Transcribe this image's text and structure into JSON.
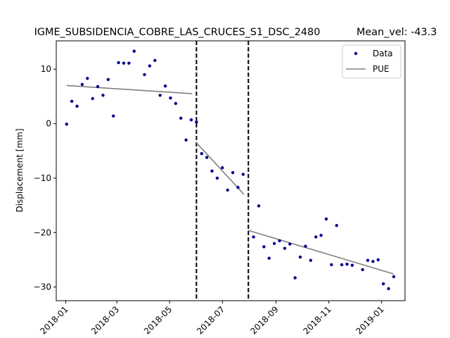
{
  "chart_data": {
    "type": "scatter",
    "title": "IGME_SUBSIDENCIA_COBRE_LAS_CRUCES_S1_DSC_2480",
    "title_right": "Mean_vel: -43.3",
    "xlabel": "",
    "ylabel": "Displacement [mm]",
    "xlim": [
      "2017-12-21",
      "2019-01-28"
    ],
    "ylim": [
      -32.5,
      15.2
    ],
    "yticks": [
      10,
      0,
      -10,
      -20,
      -30
    ],
    "ytick_labels": [
      "10",
      "0",
      "−10",
      "−20",
      "−30"
    ],
    "xticks": [
      "2018-01-01",
      "2018-03-01",
      "2018-05-01",
      "2018-07-01",
      "2018-09-01",
      "2018-11-01",
      "2019-01-01"
    ],
    "xtick_labels": [
      "2018-01",
      "2018-03",
      "2018-05",
      "2018-07",
      "2018-09",
      "2018-11",
      "2019-01"
    ],
    "grid": false,
    "legend_position": "top-right",
    "legend": [
      {
        "label": "Data",
        "kind": "marker",
        "color": "#00008b"
      },
      {
        "label": "PUE",
        "kind": "line",
        "color": "#808080"
      }
    ],
    "breakpoints": [
      "2018-06-01",
      "2018-07-31"
    ],
    "series": [
      {
        "name": "Data",
        "color": "#00008b",
        "x": [
          "2018-01-02",
          "2018-01-08",
          "2018-01-14",
          "2018-01-20",
          "2018-01-26",
          "2018-02-01",
          "2018-02-07",
          "2018-02-13",
          "2018-02-19",
          "2018-02-25",
          "2018-03-03",
          "2018-03-09",
          "2018-03-15",
          "2018-03-21",
          "2018-03-27",
          "2018-04-02",
          "2018-04-08",
          "2018-04-14",
          "2018-04-20",
          "2018-04-26",
          "2018-05-02",
          "2018-05-08",
          "2018-05-14",
          "2018-05-20",
          "2018-05-26",
          "2018-06-01",
          "2018-06-07",
          "2018-06-13",
          "2018-06-19",
          "2018-06-25",
          "2018-07-01",
          "2018-07-07",
          "2018-07-13",
          "2018-07-19",
          "2018-07-25",
          "2018-07-31",
          "2018-08-06",
          "2018-08-12",
          "2018-08-18",
          "2018-08-24",
          "2018-08-30",
          "2018-09-05",
          "2018-09-11",
          "2018-09-17",
          "2018-09-23",
          "2018-09-29",
          "2018-10-05",
          "2018-10-11",
          "2018-10-17",
          "2018-10-23",
          "2018-10-29",
          "2018-11-04",
          "2018-11-10",
          "2018-11-16",
          "2018-11-22",
          "2018-11-28",
          "2018-12-04",
          "2018-12-10",
          "2018-12-16",
          "2018-12-22",
          "2018-12-28",
          "2019-01-03",
          "2019-01-09",
          "2019-01-15"
        ],
        "y": [
          -0.1,
          4.1,
          3.2,
          7.2,
          8.3,
          4.6,
          6.8,
          5.2,
          8.1,
          1.4,
          11.2,
          11.1,
          11.1,
          13.3,
          null,
          9.0,
          10.6,
          11.6,
          5.2,
          6.9,
          4.7,
          3.7,
          1.0,
          -3.0,
          0.7,
          0.3,
          -5.5,
          -6.2,
          -8.7,
          -10.0,
          -8.1,
          -12.2,
          -9.0,
          -11.7,
          -9.3,
          null,
          -20.8,
          -15.1,
          -22.6,
          -24.7,
          -22.0,
          -21.5,
          -22.9,
          -22.1,
          -28.3,
          -24.5,
          -22.5,
          -25.1,
          -20.8,
          -20.5,
          -17.5,
          -25.9,
          -18.7,
          -25.9,
          -25.8,
          -26.0,
          null,
          -26.8,
          -25.1,
          -25.3,
          -25.0,
          -29.4,
          -30.3,
          -28.1
        ]
      },
      {
        "name": "PUE",
        "color": "#808080",
        "segments": [
          {
            "x": [
              "2018-01-02",
              "2018-05-27"
            ],
            "y": [
              7.0,
              5.5
            ]
          },
          {
            "x": [
              "2018-06-01",
              "2018-07-26"
            ],
            "y": [
              -3.5,
              -13.0
            ]
          },
          {
            "x": [
              "2018-07-31",
              "2019-01-15"
            ],
            "y": [
              -19.6,
              -27.6
            ]
          }
        ]
      }
    ]
  }
}
